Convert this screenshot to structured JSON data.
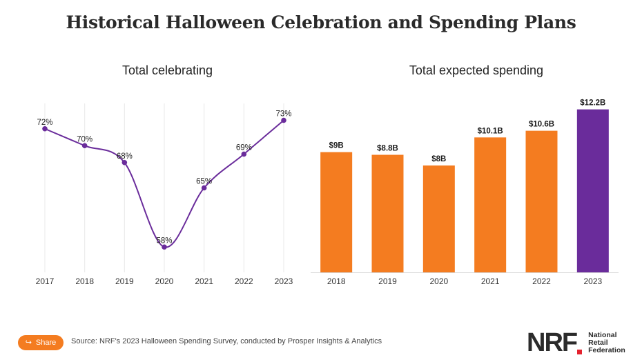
{
  "page": {
    "title": "Historical Halloween Celebration and Spending Plans",
    "source": "Source: NRF's 2023 Halloween Spending Survey, conducted by Prosper Insights & Analytics",
    "share_label": "Share",
    "logo": {
      "mark": "NRF",
      "lines": [
        "National",
        "Retail",
        "Federation"
      ]
    }
  },
  "colors": {
    "purple": "#6a2c9b",
    "orange": "#f47c20",
    "grid": "#e8e8e8"
  },
  "chart_data": [
    {
      "type": "line",
      "title": "Total celebrating",
      "categories": [
        "2017",
        "2018",
        "2019",
        "2020",
        "2021",
        "2022",
        "2023"
      ],
      "values": [
        72,
        70,
        68,
        58,
        65,
        69,
        73
      ],
      "labels": [
        "72%",
        "70%",
        "68%",
        "58%",
        "65%",
        "69%",
        "73%"
      ],
      "ylim": [
        55,
        75
      ],
      "grid": "vertical",
      "unit": "%"
    },
    {
      "type": "bar",
      "title": "Total expected spending",
      "categories": [
        "2018",
        "2019",
        "2020",
        "2021",
        "2022",
        "2023"
      ],
      "values": [
        9,
        8.8,
        8,
        10.1,
        10.6,
        12.2
      ],
      "labels": [
        "$9B",
        "$8.8B",
        "$8B",
        "$10.1B",
        "$10.6B",
        "$12.2B"
      ],
      "highlight_index": 5,
      "ylim": [
        0,
        12.8
      ],
      "unit": "billion USD"
    }
  ]
}
